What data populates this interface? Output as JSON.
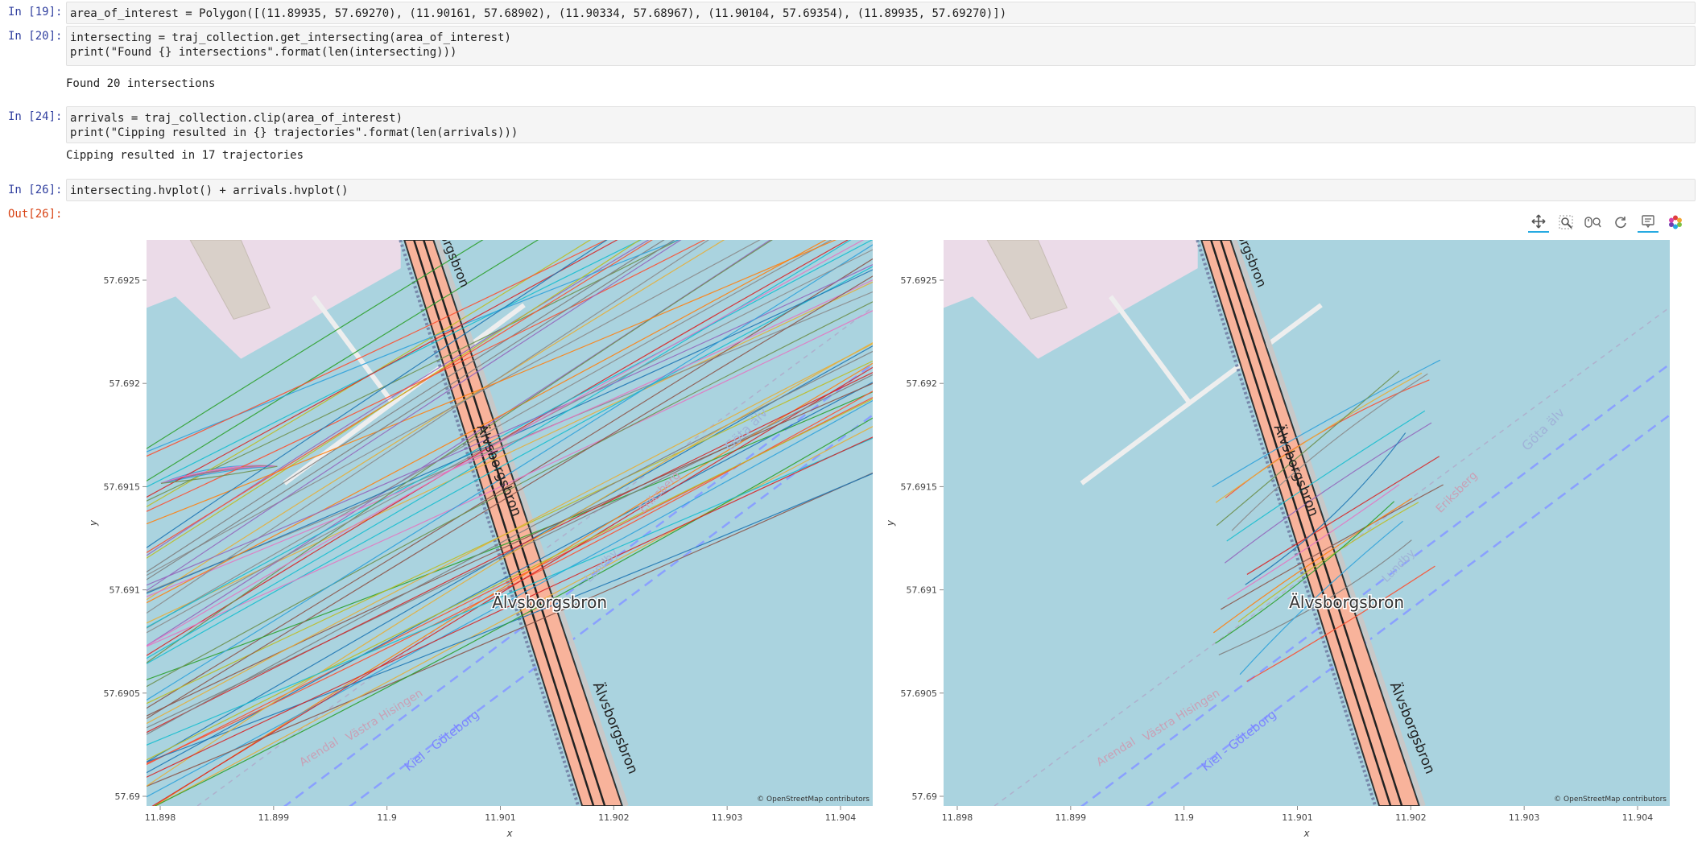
{
  "cells": [
    {
      "prompt": "In [19]:",
      "code": [
        "area_of_interest = Polygon([(11.89935, 57.69270), (11.90161, 57.68902), (11.90334, 57.68967), (11.90104, 57.69354), (11.89935, 57.69270)])"
      ]
    },
    {
      "prompt": "In [20]:",
      "code": [
        "intersecting = traj_collection.get_intersecting(area_of_interest)",
        "print(\"Found {} intersections\".format(len(intersecting)))"
      ],
      "output": "Found 20 intersections"
    },
    {
      "prompt": "In [24]:",
      "code": [
        "arrivals = traj_collection.clip(area_of_interest)",
        "print(\"Cipping resulted in {} trajectories\".format(len(arrivals)))"
      ],
      "output": "Cipping resulted in 17 trajectories"
    },
    {
      "prompt": "In [26]:",
      "code": [
        "intersecting.hvplot() + arrivals.hvplot()"
      ]
    }
  ],
  "out_prompt": "Out[26]:",
  "toolbar": {
    "tools": [
      {
        "name": "pan-icon",
        "active": true
      },
      {
        "name": "box-zoom-icon",
        "active": false
      },
      {
        "name": "wheel-zoom-icon",
        "active": false
      },
      {
        "name": "reset-icon",
        "active": false
      },
      {
        "name": "hover-icon",
        "active": true
      },
      {
        "name": "bokeh-logo-icon",
        "active": false
      }
    ]
  },
  "plots": {
    "xlabel": "x",
    "ylabel": "y",
    "x_ticks": [
      "11.898",
      "11.899",
      "11.9",
      "11.901",
      "11.902",
      "11.903",
      "11.904"
    ],
    "y_ticks": [
      "57.6925",
      "57.692",
      "57.6915",
      "57.691",
      "57.6905",
      "57.69"
    ],
    "attribution": "© OpenStreetMap contributors",
    "map_labels": {
      "bridge_main": "Älvsborgsbron",
      "bridge_top": "Älvsborgsbron",
      "bridge_vertical": "Älvsborgsbron",
      "bridge_bottom": "Älvsborgsbron",
      "ferry": "Kiel - Göteborg",
      "arendal": "Arendal",
      "vastra": "Västra Hisingen",
      "lundby": "Lundby",
      "eriksberg": "Eriksberg",
      "gota_alv": "Göta älv"
    }
  },
  "colors": {
    "water": "#aad3df",
    "industrial": "#ebdbe8",
    "building": "#d9d0c9",
    "bridge": "#f8b39b",
    "bridge_edge": "#333333"
  }
}
